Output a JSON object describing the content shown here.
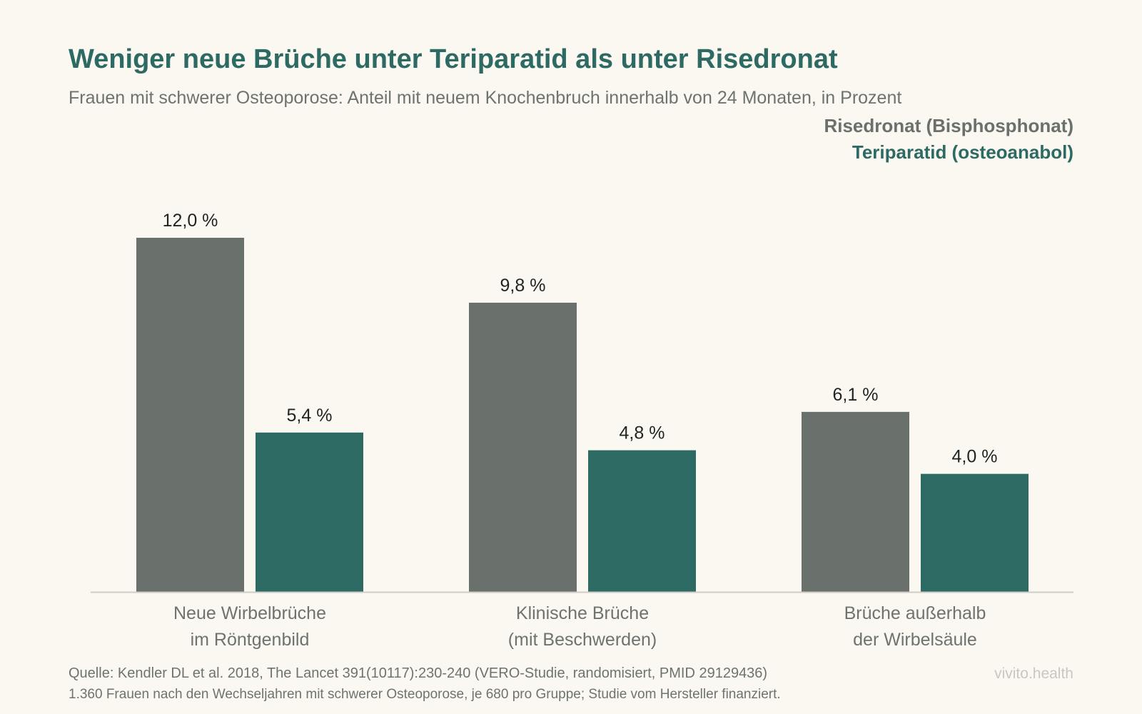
{
  "title": "Weniger neue Brüche unter Teriparatid als unter Risedronat",
  "subtitle": "Frauen mit schwerer Osteoporose: Anteil mit neuem Knochenbruch innerhalb von 24 Monaten, in Prozent",
  "legend": [
    {
      "label": "Risedronat (Bisphosphonat)",
      "color": "#6a716d"
    },
    {
      "label": "Teriparatid (osteoanabol)",
      "color": "#2d6a63"
    }
  ],
  "chart_data": {
    "type": "bar",
    "categories": [
      [
        "Neue Wirbelbrüche",
        "im Röntgenbild"
      ],
      [
        "Klinische Brüche",
        "(mit Beschwerden)"
      ],
      [
        "Brüche außerhalb",
        "der Wirbelsäule"
      ]
    ],
    "series": [
      {
        "name": "Risedronat (Bisphosphonat)",
        "color": "#6a716d",
        "values": [
          12.0,
          9.8,
          6.1
        ],
        "labels": [
          "12,0 %",
          "9,8 %",
          "6,1 %"
        ]
      },
      {
        "name": "Teriparatid (osteoanabol)",
        "color": "#2d6a63",
        "values": [
          5.4,
          4.8,
          4.0
        ],
        "labels": [
          "5,4 %",
          "4,8 %",
          "4,0 %"
        ]
      }
    ],
    "title": "Weniger neue Brüche unter Teriparatid als unter Risedronat",
    "xlabel": "",
    "ylabel": "",
    "ylim": [
      0,
      12
    ],
    "grid": false,
    "legend_position": "top-right"
  },
  "footer": {
    "source": "Quelle: Kendler DL et al. 2018, The Lancet 391(10117):230-240 (VERO-Studie, randomisiert, PMID 29129436)",
    "note": "1.360 Frauen nach den Wechseljahren mit schwerer Osteoporose, je 680 pro Gruppe; Studie vom Hersteller finanziert.",
    "brand": "vivito.health"
  }
}
